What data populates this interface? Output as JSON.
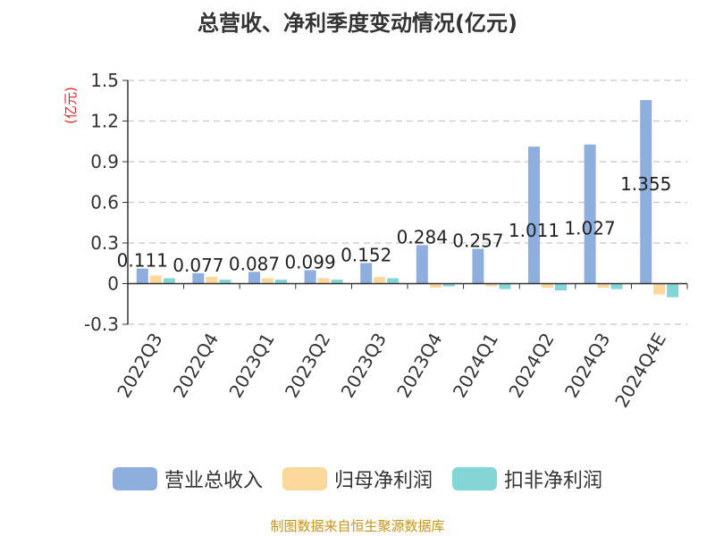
{
  "chart_data": {
    "type": "bar",
    "title": "总营收、净利季度变动情况(亿元)",
    "ylabel": "(亿元)",
    "xlabel": "",
    "categories": [
      "2022Q3",
      "2022Q4",
      "2023Q1",
      "2023Q2",
      "2023Q3",
      "2023Q4",
      "2024Q1",
      "2024Q2",
      "2024Q3",
      "2024Q4E"
    ],
    "ylim": [
      -0.3,
      1.5
    ],
    "yticks": [
      -0.3,
      0,
      0.3,
      0.6,
      0.9,
      1.2,
      1.5
    ],
    "ytick_labels": [
      "-0.3",
      "0",
      "0.3",
      "0.6",
      "0.9",
      "1.2",
      "1.5"
    ],
    "grid": true,
    "legend_position": "bottom",
    "series": [
      {
        "name": "营业总收入",
        "color": "#8eaedd",
        "values": [
          0.111,
          0.077,
          0.087,
          0.099,
          0.152,
          0.284,
          0.257,
          1.011,
          1.027,
          1.355
        ],
        "data_labels": [
          "0.111",
          "0.077",
          "0.087",
          "0.099",
          "0.152",
          "0.284",
          "0.257",
          "1.011",
          "1.027",
          "1.355"
        ]
      },
      {
        "name": "归母净利润",
        "color": "#fdd89c",
        "values": [
          0.06,
          0.05,
          0.04,
          0.04,
          0.05,
          -0.03,
          -0.02,
          -0.03,
          -0.03,
          -0.08
        ]
      },
      {
        "name": "扣非净利润",
        "color": "#85d5d6",
        "values": [
          0.04,
          0.03,
          0.03,
          0.03,
          0.04,
          -0.02,
          -0.04,
          -0.05,
          -0.04,
          -0.1
        ]
      }
    ]
  },
  "source": "制图数据来自恒生聚源数据库"
}
